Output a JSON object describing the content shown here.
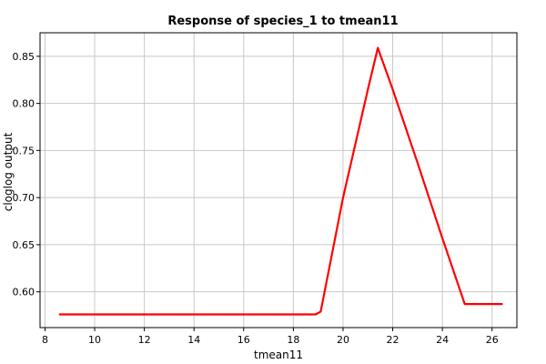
{
  "chart_data": {
    "type": "line",
    "title": "Response of species_1 to tmean11",
    "xlabel": "tmean11",
    "ylabel": "cloglog output",
    "xlim": [
      7.8,
      27.0
    ],
    "ylim": [
      0.562,
      0.875
    ],
    "xticks": [
      8,
      10,
      12,
      14,
      16,
      18,
      20,
      22,
      24,
      26
    ],
    "yticks": [
      0.6,
      0.65,
      0.7,
      0.75,
      0.8,
      0.85
    ],
    "xtick_labels": [
      "8",
      "10",
      "12",
      "14",
      "16",
      "18",
      "20",
      "22",
      "24",
      "26"
    ],
    "ytick_labels": [
      "0.60",
      "0.65",
      "0.70",
      "0.75",
      "0.80",
      "0.85"
    ],
    "grid": true,
    "line_color": "#ff0000",
    "series": [
      {
        "x": [
          8.6,
          18.9,
          19.1,
          20.0,
          21.0,
          21.4,
          22.0,
          23.0,
          24.0,
          24.9,
          26.4
        ],
        "y": [
          0.576,
          0.576,
          0.579,
          0.7,
          0.815,
          0.859,
          0.815,
          0.737,
          0.657,
          0.587,
          0.587
        ]
      }
    ]
  }
}
